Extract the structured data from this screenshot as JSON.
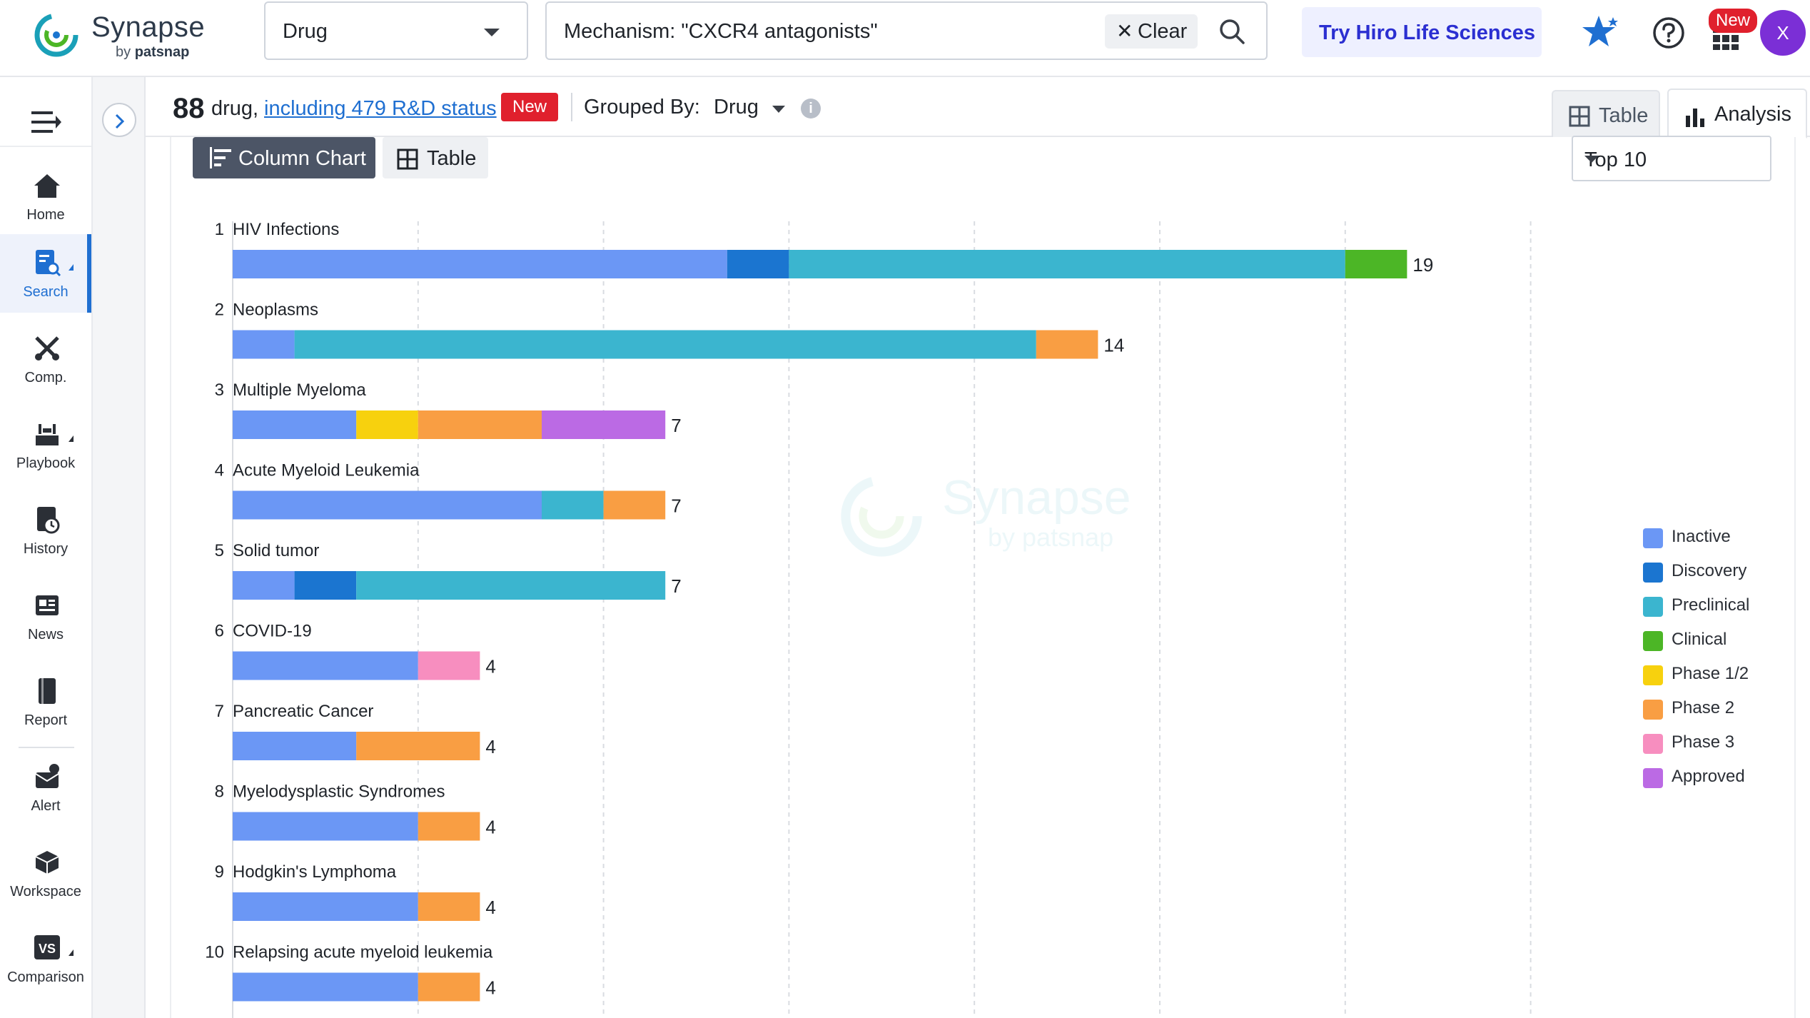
{
  "brand": {
    "name": "Synapse",
    "by": "by",
    "sub": "patsnap"
  },
  "search": {
    "type_value": "Drug",
    "query": "Mechanism: \"CXCR4 antagonists\"",
    "clear_label": "Clear"
  },
  "header_actions": {
    "hiro_label": "Try Hiro Life Sciences",
    "new_badge": "New",
    "avatar_initial": "X"
  },
  "nav": {
    "items": [
      {
        "label": "Home",
        "icon": "home-icon"
      },
      {
        "label": "Search",
        "icon": "search-doc-icon",
        "active": true
      },
      {
        "label": "Comp.",
        "icon": "competition-icon"
      },
      {
        "label": "Playbook",
        "icon": "playbook-icon"
      },
      {
        "label": "History",
        "icon": "history-icon"
      },
      {
        "label": "News",
        "icon": "news-icon"
      },
      {
        "label": "Report",
        "icon": "report-icon"
      },
      {
        "label": "Alert",
        "icon": "alert-icon"
      },
      {
        "label": "Workspace",
        "icon": "workspace-icon"
      },
      {
        "label": "Comparison",
        "icon": "comparison-icon"
      }
    ]
  },
  "results": {
    "count": "88",
    "unit": "drug,",
    "rd_link": "including 479 R&D status",
    "new_badge": "New",
    "grouped_label": "Grouped By:",
    "grouped_value": "Drug",
    "info_icon": "i"
  },
  "views": {
    "table": "Table",
    "analysis": "Analysis"
  },
  "chart_controls": {
    "column_chart": "Column Chart",
    "table": "Table",
    "top_n": "Top 10"
  },
  "watermark": {
    "name": "Synapse",
    "sub": "by patsnap"
  },
  "colors": {
    "Inactive": "#6b97f5",
    "Discovery": "#1b75d0",
    "Preclinical": "#3bb5cf",
    "Clinical": "#4cb626",
    "Phase 1/2": "#f7d10e",
    "Phase 2": "#f99e43",
    "Phase 3": "#f78ebf",
    "Approved": "#bb6ae4"
  },
  "chart_data": {
    "type": "bar",
    "orientation": "horizontal",
    "stacked": true,
    "categories": [
      "HIV Infections",
      "Neoplasms",
      "Multiple Myeloma",
      "Acute Myeloid Leukemia",
      "Solid tumor",
      "COVID-19",
      "Pancreatic Cancer",
      "Myelodysplastic Syndromes",
      "Hodgkin's Lymphoma",
      "Relapsing acute myeloid leukemia"
    ],
    "ranks": [
      "1",
      "2",
      "3",
      "4",
      "5",
      "6",
      "7",
      "8",
      "9",
      "10"
    ],
    "totals": [
      19,
      14,
      7,
      7,
      7,
      4,
      4,
      4,
      4,
      4
    ],
    "series": [
      {
        "name": "Inactive",
        "values": [
          8,
          1,
          2,
          5,
          1,
          3,
          2,
          3,
          3,
          3
        ]
      },
      {
        "name": "Discovery",
        "values": [
          1,
          0,
          0,
          0,
          1,
          0,
          0,
          0,
          0,
          0
        ]
      },
      {
        "name": "Preclinical",
        "values": [
          9,
          12,
          0,
          1,
          5,
          0,
          0,
          0,
          0,
          0
        ]
      },
      {
        "name": "Clinical",
        "values": [
          1,
          0,
          0,
          0,
          0,
          0,
          0,
          0,
          0,
          0
        ]
      },
      {
        "name": "Phase 1/2",
        "values": [
          0,
          0,
          1,
          0,
          0,
          0,
          0,
          0,
          0,
          0
        ]
      },
      {
        "name": "Phase 2",
        "values": [
          0,
          1,
          2,
          1,
          0,
          0,
          2,
          1,
          1,
          1
        ]
      },
      {
        "name": "Phase 3",
        "values": [
          0,
          0,
          0,
          0,
          0,
          1,
          0,
          0,
          0,
          0
        ]
      },
      {
        "name": "Approved",
        "values": [
          0,
          0,
          2,
          0,
          0,
          0,
          0,
          0,
          0,
          0
        ]
      }
    ],
    "xlim": [
      0,
      21
    ],
    "grid": true,
    "legend": "right"
  }
}
